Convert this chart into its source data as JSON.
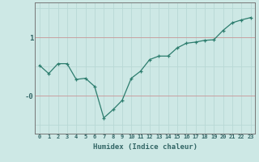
{
  "xlabel": "Humidex (Indice chaleur)",
  "x_values": [
    0,
    1,
    2,
    3,
    4,
    5,
    6,
    7,
    8,
    9,
    10,
    11,
    12,
    13,
    14,
    15,
    16,
    17,
    18,
    19,
    20,
    21,
    22,
    23
  ],
  "y_values": [
    0.52,
    0.38,
    0.55,
    0.55,
    0.28,
    0.3,
    0.16,
    -0.38,
    -0.24,
    -0.08,
    0.3,
    0.42,
    0.62,
    0.68,
    0.68,
    0.82,
    0.9,
    0.92,
    0.95,
    0.96,
    1.12,
    1.25,
    1.3,
    1.34
  ],
  "ytick_labels": [
    "1",
    "-0"
  ],
  "ytick_positions": [
    1.0,
    0.0
  ],
  "bg_color": "#cde8e5",
  "line_color": "#2d7d6e",
  "grid_color_light": "#b8d8d5",
  "grid_color_red": "#c8a0a0",
  "axis_color": "#777777",
  "font_color": "#336666",
  "ylim": [
    -0.65,
    1.6
  ],
  "xlim": [
    -0.5,
    23.5
  ]
}
